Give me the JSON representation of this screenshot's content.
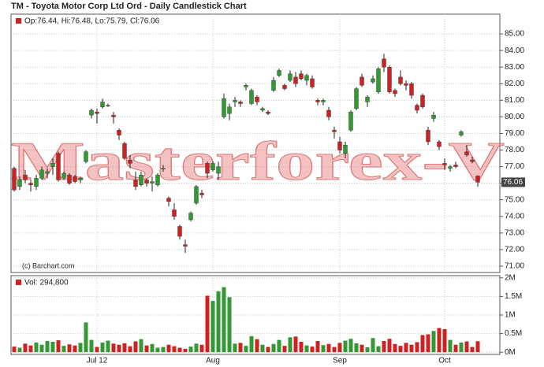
{
  "chart_data": [
    {
      "type": "candlestick",
      "title": "TM - Toyota Motor Corp Ltd Ord - Daily Candlestick Chart",
      "legend": "Op:76.44, Hi:76.48, Lo:75.79, Cl:76.06",
      "credit": "(c) Barchart.com",
      "watermark": "Masterforex-V",
      "last_price": 76.06,
      "up_color": "#339933",
      "down_color": "#cc2222",
      "grid": true,
      "categories": [
        null,
        null,
        null,
        null,
        null,
        null,
        null,
        null,
        null,
        null,
        null,
        null,
        null,
        null,
        null,
        "Jul 12",
        null,
        null,
        null,
        null,
        null,
        null,
        null,
        null,
        null,
        null,
        null,
        null,
        null,
        null,
        null,
        null,
        null,
        null,
        null,
        null,
        "Aug",
        null,
        null,
        null,
        null,
        null,
        null,
        null,
        null,
        null,
        null,
        null,
        null,
        null,
        null,
        null,
        null,
        null,
        null,
        null,
        null,
        null,
        null,
        "Sep",
        null,
        null,
        null,
        null,
        null,
        null,
        null,
        null,
        null,
        null,
        null,
        null,
        null,
        null,
        null,
        null,
        null,
        null,
        "Oct",
        null,
        null,
        null,
        null,
        null,
        null
      ],
      "open": [
        76.9,
        75.8,
        76.5,
        76.0,
        75.8,
        76.3,
        76.6,
        77.0,
        77.8,
        76.3,
        76.5,
        76.4,
        76.2,
        77.3,
        80.1,
        80.3,
        80.6,
        80.7,
        80.1,
        79.2,
        78.4,
        77.4,
        76.2,
        75.9,
        76.2,
        76.0,
        75.9,
        76.9,
        75.1,
        74.4,
        73.4,
        72.3,
        73.8,
        74.8,
        75.4,
        77.2,
        76.8,
        76.6,
        80.0,
        80.2,
        80.9,
        80.9,
        81.8,
        80.8,
        81.2,
        80.4,
        80.3,
        81.6,
        82.5,
        81.9,
        82.2,
        82.4,
        82.6,
        82.2,
        82.3,
        81.0,
        80.9,
        80.4,
        79.2,
        78.5,
        77.8,
        79.2,
        80.5,
        82.4,
        80.9,
        82.1,
        81.5,
        83.5,
        83.0,
        81.6,
        82.4,
        82.0,
        82.0,
        80.7,
        81.3,
        79.2,
        79.9,
        78.5,
        77.2,
        76.9,
        77.1,
        78.9,
        77.9,
        77.4,
        76.44
      ],
      "high": [
        77.0,
        76.4,
        76.8,
        76.2,
        76.5,
        77.0,
        76.9,
        77.5,
        77.9,
        76.7,
        76.6,
        76.5,
        76.4,
        78.0,
        80.5,
        80.5,
        81.1,
        80.8,
        80.3,
        79.3,
        78.5,
        77.7,
        76.7,
        76.7,
        76.3,
        76.4,
        76.6,
        77.1,
        75.2,
        74.8,
        73.5,
        72.6,
        74.3,
        75.9,
        75.6,
        77.3,
        77.3,
        77.3,
        81.4,
        80.8,
        81.2,
        81.0,
        82.0,
        81.7,
        81.3,
        80.6,
        80.4,
        82.4,
        82.9,
        82.0,
        82.8,
        82.7,
        82.8,
        82.6,
        82.5,
        81.1,
        81.1,
        80.6,
        79.4,
        78.8,
        78.5,
        80.4,
        81.8,
        82.6,
        81.3,
        82.5,
        83.0,
        83.8,
        83.1,
        81.7,
        82.8,
        82.2,
        82.1,
        80.8,
        81.4,
        79.4,
        80.3,
        78.6,
        77.5,
        77.1,
        77.3,
        79.2,
        78.3,
        77.6,
        76.48
      ],
      "low": [
        75.5,
        75.6,
        76.0,
        75.5,
        75.6,
        76.2,
        76.3,
        76.5,
        76.1,
        76.2,
        75.9,
        76.0,
        76.0,
        77.2,
        79.9,
        79.6,
        80.5,
        80.6,
        79.6,
        78.6,
        77.4,
        76.9,
        75.6,
        75.8,
        75.8,
        75.5,
        75.8,
        76.7,
        74.6,
        73.8,
        72.6,
        71.8,
        73.7,
        74.7,
        75.1,
        76.3,
        76.7,
        76.2,
        79.9,
        79.8,
        80.6,
        80.6,
        81.6,
        80.7,
        80.7,
        80.3,
        80.1,
        81.5,
        82.4,
        81.6,
        82.1,
        81.8,
        82.2,
        81.9,
        81.7,
        80.7,
        80.7,
        79.8,
        78.7,
        77.8,
        77.5,
        79.1,
        80.4,
        81.8,
        80.6,
        82.0,
        81.4,
        82.7,
        81.4,
        81.2,
        81.9,
        81.6,
        81.1,
        80.2,
        80.5,
        78.3,
        79.7,
        78.0,
        76.8,
        76.7,
        76.9,
        78.8,
        77.6,
        77.2,
        75.79
      ],
      "close": [
        75.6,
        76.2,
        76.2,
        75.9,
        76.3,
        76.8,
        76.7,
        77.2,
        76.2,
        76.6,
        76.0,
        76.1,
        76.3,
        77.9,
        80.4,
        80.2,
        80.9,
        80.7,
        80.0,
        78.9,
        77.5,
        77.2,
        75.8,
        76.5,
        76.0,
        76.1,
        76.5,
        76.9,
        74.9,
        74.0,
        72.8,
        72.2,
        74.2,
        75.8,
        75.3,
        76.6,
        77.2,
        77.0,
        81.1,
        80.6,
        81.0,
        80.8,
        81.9,
        81.6,
        80.9,
        80.5,
        80.2,
        82.2,
        82.8,
        81.7,
        82.6,
        82.0,
        82.3,
        82.5,
        81.8,
        80.9,
        81.0,
        80.0,
        79.1,
        78.0,
        78.3,
        80.3,
        81.7,
        81.9,
        81.2,
        82.3,
        82.9,
        83.0,
        81.5,
        81.4,
        82.0,
        81.9,
        81.3,
        80.4,
        80.6,
        78.5,
        80.1,
        78.2,
        77.1,
        77.0,
        77.0,
        79.1,
        77.7,
        77.3,
        76.06
      ],
      "ylim": [
        70.62,
        86.19
      ],
      "yticks": [
        {
          "value": 71,
          "label": "71.00"
        },
        {
          "value": 72,
          "label": "72.00"
        },
        {
          "value": 73,
          "label": "73.00"
        },
        {
          "value": 74,
          "label": "74.00"
        },
        {
          "value": 75,
          "label": "75.00"
        },
        {
          "value": 76,
          "label": "76.00"
        },
        {
          "value": 77,
          "label": "77.00"
        },
        {
          "value": 78,
          "label": "78.00"
        },
        {
          "value": 79,
          "label": "79.00"
        },
        {
          "value": 80,
          "label": "80.00"
        },
        {
          "value": 81,
          "label": "81.00"
        },
        {
          "value": 82,
          "label": "82.00"
        },
        {
          "value": 83,
          "label": "83.00"
        },
        {
          "value": 84,
          "label": "84.00"
        },
        {
          "value": 85,
          "label": "85.00"
        }
      ]
    },
    {
      "type": "bar",
      "legend": "Vol: 294,800",
      "grid": true,
      "values": [
        150000,
        120000,
        230000,
        180000,
        260000,
        200000,
        300000,
        280000,
        320000,
        170000,
        210000,
        180000,
        250000,
        800000,
        330000,
        140000,
        260000,
        310000,
        230000,
        200000,
        240000,
        160000,
        290000,
        350000,
        180000,
        220000,
        120000,
        140000,
        200000,
        160000,
        120000,
        90000,
        150000,
        230000,
        200000,
        1520000,
        1380000,
        1640000,
        1750000,
        1480000,
        230000,
        250000,
        170000,
        430000,
        350000,
        200000,
        140000,
        220000,
        330000,
        170000,
        400000,
        420000,
        280000,
        180000,
        150000,
        300000,
        190000,
        220000,
        140000,
        250000,
        310000,
        360000,
        240000,
        200000,
        130000,
        380000,
        160000,
        300000,
        360000,
        220000,
        170000,
        250000,
        200000,
        270000,
        460000,
        480000,
        570000,
        650000,
        620000,
        330000,
        200000,
        260000,
        290000,
        140000,
        294800
      ],
      "ylim": [
        -60000,
        2060000
      ],
      "yticks": [
        {
          "value": 0,
          "label": "0M"
        },
        {
          "value": 500000,
          "label": "0.5M"
        },
        {
          "value": 1000000,
          "label": "1M"
        },
        {
          "value": 1500000,
          "label": "1.5M"
        },
        {
          "value": 2000000,
          "label": "2M"
        }
      ]
    }
  ]
}
